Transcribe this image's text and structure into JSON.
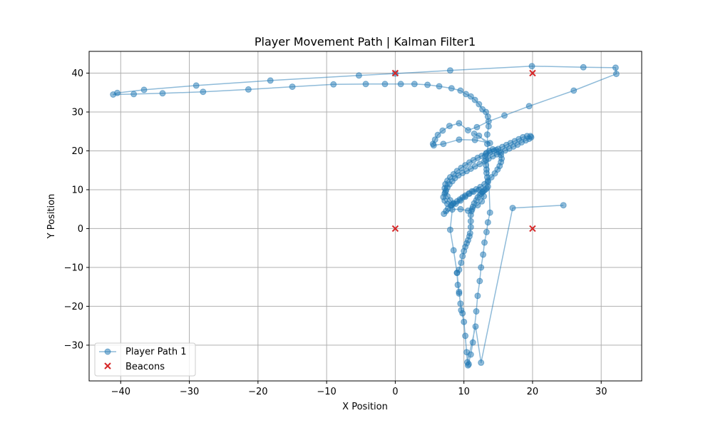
{
  "chart_data": {
    "type": "scatter",
    "title": "Player Movement Path | Kalman Filter1",
    "xlabel": "X Position",
    "ylabel": "Y Position",
    "xlim": [
      -44.6,
      35.9
    ],
    "ylim": [
      -39.2,
      45.6
    ],
    "xticks": [
      -40,
      -30,
      -20,
      -10,
      0,
      10,
      20,
      30
    ],
    "yticks": [
      -30,
      -20,
      -10,
      0,
      10,
      20,
      30,
      40
    ],
    "grid": true,
    "legend_position": "lower-left",
    "series": [
      {
        "name": "Player Path 1",
        "kind": "line-markers",
        "color": "#1f77b4",
        "points": [
          [
            24.5,
            6.0
          ],
          [
            17.1,
            5.3
          ],
          [
            12.5,
            -34.5
          ],
          [
            11.7,
            -25.2
          ],
          [
            10.5,
            -34.4
          ],
          [
            10.2,
            -27.6
          ],
          [
            9.8,
            -21.8
          ],
          [
            9.5,
            -19.3
          ],
          [
            9.3,
            -16.7
          ],
          [
            9.1,
            -14.5
          ],
          [
            9.0,
            -11.4
          ],
          [
            9.3,
            -10.6
          ],
          [
            9.6,
            -8.8
          ],
          [
            9.8,
            -7.1
          ],
          [
            10.0,
            -5.8
          ],
          [
            10.2,
            -4.7
          ],
          [
            10.4,
            -3.8
          ],
          [
            10.6,
            -3.0
          ],
          [
            10.8,
            -2.0
          ],
          [
            10.9,
            -1.2
          ],
          [
            11.0,
            0.4
          ],
          [
            11.0,
            1.9
          ],
          [
            11.0,
            3.5
          ],
          [
            11.1,
            4.5
          ],
          [
            11.3,
            5.6
          ],
          [
            11.5,
            6.5
          ],
          [
            11.8,
            7.3
          ],
          [
            12.0,
            8.0
          ],
          [
            12.3,
            8.6
          ],
          [
            12.5,
            9.0
          ],
          [
            12.7,
            9.4
          ],
          [
            12.9,
            9.7
          ],
          [
            13.1,
            10.0
          ],
          [
            13.3,
            10.3
          ],
          [
            13.5,
            10.8
          ],
          [
            13.5,
            12.0
          ],
          [
            13.4,
            13.2
          ],
          [
            13.3,
            14.3
          ],
          [
            13.3,
            15.2
          ],
          [
            13.2,
            16.3
          ],
          [
            13.2,
            17.6
          ],
          [
            13.1,
            18.7
          ],
          [
            13.3,
            19.5
          ],
          [
            13.7,
            20.0
          ],
          [
            14.2,
            20.4
          ],
          [
            14.7,
            20.2
          ],
          [
            15.1,
            19.7
          ],
          [
            15.4,
            18.9
          ],
          [
            15.5,
            18.0
          ],
          [
            15.4,
            17.1
          ],
          [
            15.2,
            16.1
          ],
          [
            14.9,
            15.2
          ],
          [
            14.5,
            14.2
          ],
          [
            14.0,
            13.2
          ],
          [
            13.5,
            12.3
          ],
          [
            13.0,
            11.4
          ],
          [
            12.4,
            10.7
          ],
          [
            11.8,
            10.1
          ],
          [
            11.2,
            9.6
          ],
          [
            10.7,
            9.0
          ],
          [
            10.2,
            8.5
          ],
          [
            9.8,
            8.0
          ],
          [
            9.4,
            7.5
          ],
          [
            9.0,
            7.0
          ],
          [
            8.5,
            6.5
          ],
          [
            8.1,
            5.9
          ],
          [
            7.7,
            5.2
          ],
          [
            7.4,
            4.5
          ],
          [
            7.1,
            3.8
          ],
          [
            8.3,
            4.9
          ],
          [
            9.5,
            5.0
          ],
          [
            10.6,
            4.6
          ],
          [
            11.2,
            5.0
          ],
          [
            12.0,
            6.0
          ],
          [
            12.6,
            7.0
          ],
          [
            12.9,
            8.3
          ],
          [
            12.7,
            9.4
          ],
          [
            12.2,
            10.0
          ],
          [
            11.4,
            9.5
          ],
          [
            10.8,
            9.0
          ],
          [
            10.2,
            8.2
          ],
          [
            9.5,
            7.2
          ],
          [
            8.8,
            6.4
          ],
          [
            8.2,
            6.0
          ],
          [
            7.6,
            6.4
          ],
          [
            7.2,
            7.2
          ],
          [
            7.0,
            8.1
          ],
          [
            7.2,
            9.0
          ],
          [
            7.4,
            9.8
          ],
          [
            7.6,
            10.6
          ],
          [
            7.9,
            11.4
          ],
          [
            8.3,
            12.2
          ],
          [
            8.7,
            13.0
          ],
          [
            9.2,
            13.7
          ],
          [
            9.8,
            14.3
          ],
          [
            10.4,
            14.8
          ],
          [
            11.0,
            15.4
          ],
          [
            11.6,
            16.0
          ],
          [
            12.3,
            16.6
          ],
          [
            13.0,
            17.3
          ],
          [
            13.6,
            18.0
          ],
          [
            14.2,
            18.6
          ],
          [
            14.8,
            19.1
          ],
          [
            15.4,
            19.6
          ],
          [
            16.0,
            20.1
          ],
          [
            16.6,
            20.6
          ],
          [
            17.2,
            21.1
          ],
          [
            17.8,
            21.6
          ],
          [
            18.4,
            22.2
          ],
          [
            19.0,
            22.7
          ],
          [
            19.5,
            23.1
          ],
          [
            19.8,
            23.5
          ],
          [
            19.7,
            23.8
          ],
          [
            19.2,
            23.8
          ],
          [
            18.6,
            23.5
          ],
          [
            18.0,
            23.0
          ],
          [
            17.4,
            22.5
          ],
          [
            16.8,
            22.0
          ],
          [
            16.2,
            21.5
          ],
          [
            15.6,
            21.0
          ],
          [
            15.0,
            20.5
          ],
          [
            14.4,
            20.0
          ],
          [
            13.8,
            19.6
          ],
          [
            13.2,
            19.2
          ],
          [
            12.6,
            18.7
          ],
          [
            12.0,
            18.2
          ],
          [
            11.4,
            17.6
          ],
          [
            10.8,
            17.0
          ],
          [
            10.2,
            16.3
          ],
          [
            9.6,
            15.6
          ],
          [
            9.0,
            14.8
          ],
          [
            8.5,
            14.0
          ],
          [
            8.0,
            13.2
          ],
          [
            7.6,
            12.3
          ],
          [
            7.3,
            11.4
          ],
          [
            7.2,
            10.4
          ],
          [
            7.3,
            9.4
          ],
          [
            7.6,
            8.3
          ],
          [
            8.0,
            7.3
          ],
          [
            8.4,
            6.4
          ],
          [
            8.0,
            -0.3
          ],
          [
            8.5,
            -5.6
          ],
          [
            9.0,
            -11.4
          ],
          [
            9.3,
            -16.3
          ],
          [
            9.6,
            -21.0
          ],
          [
            10.0,
            -24.0
          ],
          [
            10.4,
            -31.8
          ],
          [
            10.7,
            -34.9
          ],
          [
            10.6,
            -35.2
          ],
          [
            11.0,
            -32.4
          ],
          [
            11.3,
            -29.3
          ],
          [
            11.8,
            -21.3
          ],
          [
            12.0,
            -17.3
          ],
          [
            12.3,
            -13.5
          ],
          [
            12.5,
            -10.0
          ],
          [
            12.8,
            -6.7
          ],
          [
            13.0,
            -3.6
          ],
          [
            13.3,
            -0.9
          ],
          [
            13.5,
            1.6
          ],
          [
            13.8,
            4.1
          ],
          [
            13.4,
            24.2
          ],
          [
            13.6,
            26.3
          ],
          [
            13.5,
            28.8
          ],
          [
            13.2,
            30.0
          ],
          [
            12.7,
            30.7
          ],
          [
            12.2,
            32.0
          ],
          [
            11.6,
            33.1
          ],
          [
            11.0,
            34.0
          ],
          [
            10.3,
            34.6
          ],
          [
            9.5,
            35.5
          ],
          [
            8.2,
            36.1
          ],
          [
            6.4,
            36.6
          ],
          [
            4.7,
            37.0
          ],
          [
            2.8,
            37.2
          ],
          [
            0.8,
            37.2
          ],
          [
            -1.5,
            37.2
          ],
          [
            -4.3,
            37.2
          ],
          [
            -9.0,
            37.1
          ],
          [
            -15.0,
            36.5
          ],
          [
            -21.4,
            35.8
          ],
          [
            -28.0,
            35.2
          ],
          [
            -33.9,
            34.8
          ],
          [
            -38.1,
            34.6
          ],
          [
            -41.1,
            34.5
          ],
          [
            -40.5,
            34.9
          ],
          [
            -36.6,
            35.7
          ],
          [
            -29.0,
            36.8
          ],
          [
            -18.2,
            38.1
          ],
          [
            -5.3,
            39.4
          ],
          [
            0.0,
            39.9
          ],
          [
            8.0,
            40.7
          ],
          [
            19.9,
            41.8
          ],
          [
            27.4,
            41.5
          ],
          [
            32.1,
            41.4
          ],
          [
            32.2,
            39.8
          ],
          [
            26.0,
            35.5
          ],
          [
            19.5,
            31.5
          ],
          [
            15.9,
            29.1
          ],
          [
            13.6,
            27.6
          ],
          [
            11.9,
            26.1
          ],
          [
            10.6,
            25.3
          ],
          [
            9.3,
            27.1
          ],
          [
            7.9,
            26.4
          ],
          [
            6.9,
            25.2
          ],
          [
            6.2,
            24.1
          ],
          [
            5.8,
            22.9
          ],
          [
            5.5,
            21.8
          ],
          [
            5.6,
            21.4
          ],
          [
            7.0,
            21.8
          ],
          [
            9.3,
            22.9
          ],
          [
            11.6,
            22.8
          ],
          [
            13.8,
            22.0
          ],
          [
            11.5,
            24.4
          ],
          [
            12.2,
            23.9
          ],
          [
            13.4,
            21.8
          ]
        ]
      },
      {
        "name": "Beacons",
        "kind": "markers-x",
        "color": "#d62728",
        "points": [
          [
            0,
            40
          ],
          [
            20,
            40
          ],
          [
            0,
            0
          ],
          [
            20,
            0
          ]
        ]
      }
    ]
  }
}
